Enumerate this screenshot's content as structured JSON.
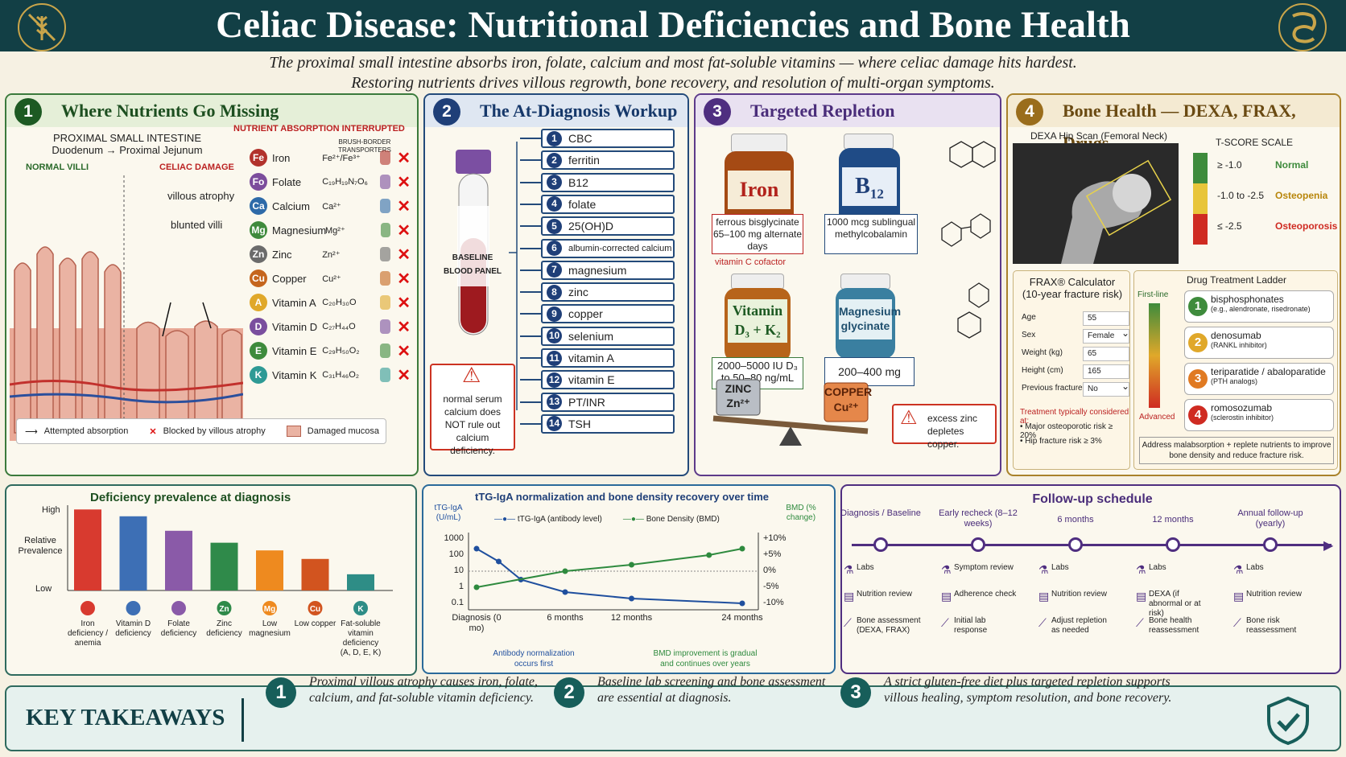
{
  "header": {
    "title": "Celiac Disease: Nutritional Deficiencies and Bone Health",
    "subtitle_line1": "The proximal small intestine absorbs iron, folate, calcium and most fat-soluble vitamins — where celiac damage hits hardest.",
    "subtitle_line2": "Restoring nutrients drives villous regrowth, bone recovery, and resolution of multi-organ symptoms."
  },
  "panel1": {
    "num": "1",
    "title": "Where Nutrients Go Missing",
    "site_heading": "PROXIMAL SMALL INTESTINE",
    "site_sub": "Duodenum → Proximal Jejunum",
    "normal": "NORMAL VILLI",
    "celiac": "CELIAC DAMAGE",
    "atrophy": "villous atrophy",
    "blunted": "blunted villi",
    "absorb_heading": "NUTRIENT ABSORPTION INTERRUPTED",
    "transporters": "BRUSH-BORDER TRANSPORTERS",
    "nutrients": [
      {
        "sym": "Fe",
        "name": "Iron",
        "formula": "Fe²⁺/Fe³⁺",
        "color": "#b2322c"
      },
      {
        "sym": "Fo",
        "name": "Folate",
        "formula": "C₁₉H₁₉N₇O₆",
        "color": "#7c4d9c"
      },
      {
        "sym": "Ca",
        "name": "Calcium",
        "formula": "Ca²⁺",
        "color": "#2e6aa8"
      },
      {
        "sym": "Mg",
        "name": "Magnesium",
        "formula": "Mg²⁺",
        "color": "#3f8a3c"
      },
      {
        "sym": "Zn",
        "name": "Zinc",
        "formula": "Zn²⁺",
        "color": "#6b6b6b"
      },
      {
        "sym": "Cu",
        "name": "Copper",
        "formula": "Cu²⁺",
        "color": "#c5651d"
      },
      {
        "sym": "A",
        "name": "Vitamin A",
        "formula": "C₂₀H₃₀O",
        "color": "#e0a82a"
      },
      {
        "sym": "D",
        "name": "Vitamin D",
        "formula": "C₂₇H₄₄O",
        "color": "#7a4e9e"
      },
      {
        "sym": "E",
        "name": "Vitamin E",
        "formula": "C₂₉H₅₀O₂",
        "color": "#3e8b3c"
      },
      {
        "sym": "K",
        "name": "Vitamin K",
        "formula": "C₃₁H₄₆O₂",
        "color": "#2e9a95"
      }
    ],
    "legend": {
      "arrow": "Attempted absorption",
      "blocked": "Blocked by villous atrophy",
      "damaged": "Damaged mucosa"
    }
  },
  "panel2": {
    "num": "2",
    "title": "The At-Diagnosis Workup",
    "tube": "BASELINE BLOOD PANEL",
    "warning": "normal serum calcium does NOT rule out calcium deficiency.",
    "labs": [
      {
        "n": "1",
        "t": "CBC"
      },
      {
        "n": "2",
        "t": "ferritin"
      },
      {
        "n": "3",
        "t": "B12"
      },
      {
        "n": "4",
        "t": "folate"
      },
      {
        "n": "5",
        "t": "25(OH)D"
      },
      {
        "n": "6",
        "t": "albumin-corrected calcium"
      },
      {
        "n": "7",
        "t": "magnesium"
      },
      {
        "n": "8",
        "t": "zinc"
      },
      {
        "n": "9",
        "t": "copper"
      },
      {
        "n": "10",
        "t": "selenium"
      },
      {
        "n": "11",
        "t": "vitamin A"
      },
      {
        "n": "12",
        "t": "vitamin E"
      },
      {
        "n": "13",
        "t": "PT/INR"
      },
      {
        "n": "14",
        "t": "TSH"
      }
    ]
  },
  "panel3": {
    "num": "3",
    "title": "Targeted Repletion",
    "iron": "Iron",
    "iron_dose": "ferrous bisglycinate 65–100 mg alternate days",
    "iron_cofactor": "vitamin C cofactor",
    "b12": "B",
    "b12_sub": "12",
    "b12_dose": "1000 mcg sublingual methylcobalamin",
    "vitd": "Vitamin D₃ + K₂",
    "vitd_dose": "2000–5000 IU D₃ to 50–80 ng/mL",
    "mag": "Magnesium glycinate",
    "mag_dose": "200–400 mg",
    "zinc": "ZINC Zn²⁺",
    "copper": "COPPER Cu²⁺",
    "zinc_warning": "excess zinc depletes copper."
  },
  "panel4": {
    "num": "4",
    "title": "Bone Health — DEXA, FRAX, Drugs",
    "dexa": "DEXA Hip Scan (Femoral Neck)",
    "tscale": "T-SCORE SCALE",
    "tscore": [
      {
        "range": "≥ -1.0",
        "label": "Normal",
        "color": "#3e8b3c"
      },
      {
        "range": "-1.0 to -2.5",
        "label": "Osteopenia",
        "color": "#e8c53a"
      },
      {
        "range": "≤ -2.5",
        "label": "Osteoporosis",
        "color": "#cf2b22"
      }
    ],
    "frax_title": "FRAX® Calculator (10-year fracture risk)",
    "frax": [
      {
        "k": "Age",
        "v": "55"
      },
      {
        "k": "Sex",
        "v": "Female"
      },
      {
        "k": "Weight (kg)",
        "v": "65"
      },
      {
        "k": "Height (cm)",
        "v": "165"
      },
      {
        "k": "Previous fracture",
        "v": "No"
      }
    ],
    "frax_note": "Treatment typically considered at:",
    "frax_b1": "• Major osteoporotic risk ≥ 20%",
    "frax_b2": "• Hip fracture risk ≥ 3%",
    "ladder_title": "Drug Treatment Ladder",
    "first": "First-line",
    "advanced": "Advanced",
    "drugs": [
      {
        "n": "1",
        "name": "bisphosphonates",
        "sub": "(e.g., alendronate, risedronate)",
        "color": "#3e8b3c"
      },
      {
        "n": "2",
        "name": "denosumab",
        "sub": "(RANKL inhibitor)",
        "color": "#e0a82a"
      },
      {
        "n": "3",
        "name": "teriparatide / abaloparatide",
        "sub": "(PTH analogs)",
        "color": "#e07a22"
      },
      {
        "n": "4",
        "name": "romosozumab",
        "sub": "(sclerostin inhibitor)",
        "color": "#cf2b22"
      }
    ],
    "ladder_note": "Address malabsorption + replete nutrients to improve bone density and reduce fracture risk."
  },
  "prevalence": {
    "chart_data": {
      "type": "bar",
      "title": "Deficiency prevalence at diagnosis",
      "ylabel": "Relative Prevalence",
      "yticks": [
        "High",
        "Low"
      ],
      "categories": [
        "Iron deficiency / anemia",
        "Vitamin D deficiency",
        "Folate deficiency",
        "Zinc deficiency",
        "Low magnesium",
        "Low copper",
        "Fat-soluble vitamin deficiency (A, D, E, K)"
      ],
      "values": [
        0.95,
        0.87,
        0.7,
        0.56,
        0.47,
        0.37,
        0.19
      ],
      "colors": [
        "#d83a2f",
        "#3d6fb5",
        "#8a5aa8",
        "#2f8a4a",
        "#ee8a1f",
        "#d2541f",
        "#2e8d86"
      ],
      "icon_text": [
        "",
        "",
        "",
        "Zn",
        "Mg",
        "Cu",
        "K"
      ]
    }
  },
  "trend": {
    "chart_data": {
      "type": "line",
      "title": "tTG-IgA normalization and bone density recovery over time",
      "ylabel_left": "tTG-IgA (U/mL)",
      "ylabel_right": "BMD (% change)",
      "y_left_ticks": [
        "1000",
        "100",
        "10",
        "1",
        "0.1"
      ],
      "y_right_ticks": [
        "+10%",
        "+5%",
        "0%",
        "-5%",
        "-10%"
      ],
      "x_ticks": [
        "Diagnosis (0 mo)",
        "6 months",
        "12 months",
        "24 months"
      ],
      "series": [
        {
          "name": "tTG-IgA (antibody level)",
          "color": "#1f4f9e",
          "x": [
            0,
            2,
            4,
            8,
            14,
            24
          ],
          "y": [
            250,
            40,
            3,
            0.5,
            0.2,
            0.1
          ],
          "axis": "left-log"
        },
        {
          "name": "Bone Density (BMD)",
          "color": "#2e8a3e",
          "x": [
            0,
            8,
            14,
            21,
            24
          ],
          "y": [
            -5,
            0,
            2,
            5,
            7
          ],
          "axis": "right"
        }
      ],
      "note_left": "Antibody normalization occurs first",
      "note_right": "BMD improvement is gradual and continues over years"
    }
  },
  "followup": {
    "title": "Follow-up schedule",
    "stages": [
      {
        "head": "Diagnosis / Baseline",
        "items": [
          "Labs",
          "Nutrition review",
          "Bone assessment (DEXA, FRAX)"
        ]
      },
      {
        "head": "Early recheck (8–12 weeks)",
        "items": [
          "Symptom review",
          "Adherence check",
          "Initial lab response"
        ]
      },
      {
        "head": "6 months",
        "items": [
          "Labs",
          "Nutrition review",
          "Adjust repletion as needed"
        ]
      },
      {
        "head": "12 months",
        "items": [
          "Labs",
          "DEXA (if abnormal or at risk)",
          "Bone health reassessment"
        ]
      },
      {
        "head": "Annual follow-up (yearly)",
        "items": [
          "Labs",
          "Nutrition review",
          "Bone risk reassessment"
        ]
      }
    ]
  },
  "takeaways": {
    "title": "KEY TAKEAWAYS",
    "items": [
      {
        "n": "1",
        "t": "Proximal villous atrophy causes iron, folate, calcium, and fat-soluble vitamin deficiency."
      },
      {
        "n": "2",
        "t": "Baseline lab screening and bone assessment are essential at diagnosis."
      },
      {
        "n": "3",
        "t": "A strict gluten-free diet plus targeted repletion supports villous healing, symptom resolution, and bone recovery."
      }
    ]
  }
}
